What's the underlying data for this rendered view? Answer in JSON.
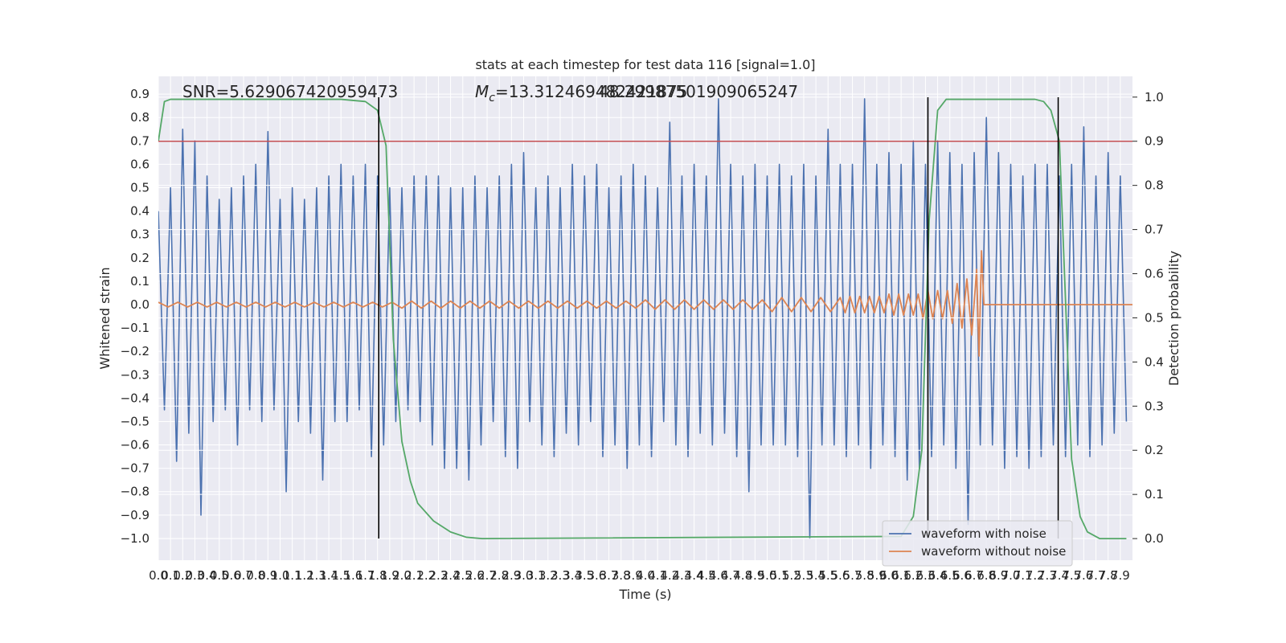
{
  "chart_data": {
    "type": "line",
    "title": "stats at each timestep for test data 116 [signal=1.0]",
    "x_label": "Time (s)",
    "y_label": "Whitened strain",
    "y2_label": "Detection probability",
    "grid": true,
    "legend": "lower right",
    "xlim": [
      0,
      8.0
    ],
    "ylim": [
      -1.093,
      0.976
    ],
    "y2lim": [
      -0.049,
      1.047
    ],
    "xticks": [
      {
        "value": 0,
        "label": "0.0"
      },
      0.1,
      0.2,
      0.3,
      0.4,
      0.5,
      0.6,
      0.7,
      0.8,
      0.9,
      {
        "value": 1,
        "label": "1.0"
      },
      1.1,
      1.2,
      1.3,
      1.4,
      1.5,
      1.6,
      1.7,
      1.8,
      1.9,
      {
        "value": 2,
        "label": "2.0"
      },
      2.1,
      2.2,
      2.3,
      2.4,
      2.5,
      2.6,
      2.7,
      2.8,
      2.9,
      {
        "value": 3,
        "label": "3.0"
      },
      3.1,
      3.2,
      3.3,
      3.4,
      3.5,
      3.6,
      3.7,
      3.8,
      3.9,
      {
        "value": 4,
        "label": "4.0"
      },
      4.1,
      4.2,
      4.3,
      4.4,
      4.5,
      4.6,
      4.7,
      4.8,
      4.9,
      {
        "value": 5,
        "label": "5.0"
      },
      5.1,
      5.2,
      5.3,
      5.4,
      5.5,
      5.6,
      5.7,
      5.8,
      5.9,
      {
        "value": 6,
        "label": "6.0"
      },
      6.1,
      6.2,
      6.3,
      6.4,
      6.5,
      6.6,
      6.7,
      6.8,
      6.9,
      {
        "value": 7,
        "label": "7.0"
      },
      7.1,
      7.2,
      7.3,
      7.4,
      7.5,
      7.6,
      7.7,
      7.8,
      7.9
    ],
    "yticks": [
      {
        "value": -1,
        "label": "−1.0"
      },
      {
        "value": -0.9,
        "label": "−0.9"
      },
      {
        "value": -0.8,
        "label": "−0.8"
      },
      {
        "value": -0.7,
        "label": "−0.7"
      },
      {
        "value": -0.6,
        "label": "−0.6"
      },
      {
        "value": -0.5,
        "label": "−0.5"
      },
      {
        "value": -0.4,
        "label": "−0.4"
      },
      {
        "value": -0.3,
        "label": "−0.3"
      },
      {
        "value": -0.2,
        "label": "−0.2"
      },
      {
        "value": -0.1,
        "label": "−0.1"
      },
      {
        "value": 0,
        "label": "0.0"
      },
      0.1,
      0.2,
      0.3,
      0.4,
      0.5,
      0.6,
      0.7,
      0.8,
      0.9
    ],
    "y2ticks": [
      {
        "value": 0,
        "label": "0.0"
      },
      0.1,
      0.2,
      0.3,
      0.4,
      0.5,
      0.6,
      0.7,
      0.8,
      0.9,
      {
        "value": 1,
        "label": "1.0"
      }
    ],
    "annotations": [
      {
        "text": "SNR=5.629067420959473"
      },
      {
        "symbol": "M",
        "subscript": "c",
        "text": "=13.312469482421875"
      },
      {
        "text": "48.29987501909065247"
      }
    ],
    "series": [
      {
        "name": "waveform with noise",
        "color": "#4c72b0",
        "x": [
          0,
          0.05,
          0.1,
          0.15,
          0.2,
          0.25,
          0.3,
          0.35,
          0.4,
          0.45,
          0.5,
          0.55,
          0.6,
          0.65,
          0.7,
          0.75,
          0.8,
          0.85,
          0.9,
          0.95,
          1,
          1.05,
          1.1,
          1.15,
          1.2,
          1.25,
          1.3,
          1.35,
          1.4,
          1.45,
          1.5,
          1.55,
          1.6,
          1.65,
          1.7,
          1.75,
          1.8,
          1.85,
          1.9,
          1.95,
          2,
          2.05,
          2.1,
          2.15,
          2.2,
          2.25,
          2.3,
          2.35,
          2.4,
          2.45,
          2.5,
          2.55,
          2.6,
          2.65,
          2.7,
          2.75,
          2.8,
          2.85,
          2.9,
          2.95,
          3,
          3.05,
          3.1,
          3.15,
          3.2,
          3.25,
          3.3,
          3.35,
          3.4,
          3.45,
          3.5,
          3.55,
          3.6,
          3.65,
          3.7,
          3.75,
          3.8,
          3.85,
          3.9,
          3.95,
          4,
          4.05,
          4.1,
          4.15,
          4.2,
          4.25,
          4.3,
          4.35,
          4.4,
          4.45,
          4.5,
          4.55,
          4.6,
          4.65,
          4.7,
          4.75,
          4.8,
          4.85,
          4.9,
          4.95,
          5,
          5.05,
          5.1,
          5.15,
          5.2,
          5.25,
          5.3,
          5.35,
          5.4,
          5.45,
          5.5,
          5.55,
          5.6,
          5.65,
          5.7,
          5.75,
          5.8,
          5.85,
          5.9,
          5.95,
          6,
          6.05,
          6.1,
          6.15,
          6.2,
          6.25,
          6.3,
          6.35,
          6.4,
          6.45,
          6.5,
          6.55,
          6.6,
          6.65,
          6.7,
          6.75,
          6.8,
          6.85,
          6.9,
          6.95,
          7,
          7.05,
          7.1,
          7.15,
          7.2,
          7.25,
          7.3,
          7.35,
          7.4,
          7.45,
          7.5,
          7.55,
          7.6,
          7.65,
          7.7,
          7.75,
          7.8,
          7.85,
          7.9,
          7.95
        ],
        "values": [
          0.4,
          -0.45,
          0.5,
          -0.67,
          0.75,
          -0.55,
          0.7,
          -0.9,
          0.55,
          -0.5,
          0.45,
          -0.45,
          0.5,
          -0.6,
          0.55,
          -0.45,
          0.6,
          -0.5,
          0.74,
          -0.45,
          0.45,
          -0.8,
          0.5,
          -0.5,
          0.45,
          -0.55,
          0.5,
          -0.75,
          0.55,
          -0.5,
          0.6,
          -0.5,
          0.55,
          -0.45,
          0.6,
          -0.65,
          0.55,
          -0.6,
          0.5,
          -0.5,
          0.5,
          -0.45,
          0.55,
          -0.5,
          0.55,
          -0.6,
          0.55,
          -0.7,
          0.5,
          -0.7,
          0.5,
          -0.75,
          0.55,
          -0.6,
          0.5,
          -0.5,
          0.55,
          -0.65,
          0.6,
          -0.7,
          0.65,
          -0.5,
          0.5,
          -0.6,
          0.55,
          -0.65,
          0.5,
          -0.55,
          0.6,
          -0.6,
          0.55,
          -0.5,
          0.6,
          -0.65,
          0.5,
          -0.6,
          0.55,
          -0.7,
          0.6,
          -0.6,
          0.55,
          -0.65,
          0.5,
          -0.5,
          0.78,
          -0.6,
          0.55,
          -0.65,
          0.6,
          -0.55,
          0.55,
          -0.6,
          0.88,
          -0.55,
          0.6,
          -0.65,
          0.55,
          -0.8,
          0.6,
          -0.6,
          0.55,
          -0.6,
          0.6,
          -0.6,
          0.55,
          -0.65,
          0.6,
          -1.0,
          0.55,
          -0.6,
          0.75,
          -0.6,
          0.6,
          -0.65,
          0.6,
          -0.6,
          0.88,
          -0.7,
          0.6,
          -0.6,
          0.65,
          -0.65,
          0.6,
          -0.75,
          0.7,
          -0.7,
          0.6,
          -0.65,
          0.7,
          -0.6,
          0.65,
          -0.7,
          0.6,
          -0.94,
          0.65,
          -0.6,
          0.8,
          -0.6,
          0.65,
          -0.7,
          0.6,
          -0.65,
          0.55,
          -0.7,
          0.6,
          -0.65,
          0.6,
          -0.6,
          0.55,
          -0.65,
          0.6,
          -0.6,
          0.76,
          -0.65,
          0.55,
          -0.6,
          0.65,
          -0.55,
          0.55,
          -0.5
        ]
      },
      {
        "name": "waveform without noise",
        "color": "#dd8452",
        "x": [
          0,
          0.08,
          0.16,
          0.24,
          0.32,
          0.4,
          0.48,
          0.56,
          0.64,
          0.72,
          0.8,
          0.88,
          0.96,
          1.04,
          1.12,
          1.2,
          1.28,
          1.36,
          1.44,
          1.52,
          1.6,
          1.68,
          1.76,
          1.84,
          1.92,
          2.0,
          2.08,
          2.16,
          2.24,
          2.32,
          2.4,
          2.48,
          2.56,
          2.64,
          2.72,
          2.8,
          2.88,
          2.96,
          3.04,
          3.12,
          3.2,
          3.28,
          3.36,
          3.44,
          3.52,
          3.6,
          3.68,
          3.76,
          3.84,
          3.92,
          4.0,
          4.08,
          4.16,
          4.24,
          4.32,
          4.4,
          4.48,
          4.56,
          4.64,
          4.72,
          4.8,
          4.88,
          4.96,
          5.04,
          5.12,
          5.2,
          5.28,
          5.36,
          5.44,
          5.52,
          5.6,
          5.64,
          5.68,
          5.72,
          5.76,
          5.8,
          5.84,
          5.88,
          5.92,
          5.96,
          6.0,
          6.04,
          6.08,
          6.12,
          6.16,
          6.2,
          6.24,
          6.28,
          6.32,
          6.36,
          6.4,
          6.44,
          6.48,
          6.52,
          6.56,
          6.6,
          6.64,
          6.68,
          6.72,
          6.74,
          6.76,
          6.78,
          8.0
        ],
        "values": [
          0.01,
          -0.01,
          0.01,
          -0.01,
          0.01,
          -0.01,
          0.01,
          -0.01,
          0.01,
          -0.01,
          0.01,
          -0.01,
          0.01,
          -0.01,
          0.01,
          -0.01,
          0.01,
          -0.01,
          0.01,
          -0.01,
          0.01,
          -0.01,
          0.01,
          -0.01,
          0.01,
          -0.015,
          0.015,
          -0.015,
          0.015,
          -0.015,
          0.015,
          -0.015,
          0.015,
          -0.015,
          0.015,
          -0.015,
          0.015,
          -0.015,
          0.015,
          -0.015,
          0.015,
          -0.015,
          0.015,
          -0.015,
          0.015,
          -0.015,
          0.015,
          -0.015,
          0.015,
          -0.015,
          0.02,
          -0.02,
          0.02,
          -0.02,
          0.02,
          -0.02,
          0.02,
          -0.02,
          0.02,
          -0.02,
          0.02,
          -0.02,
          0.02,
          -0.03,
          0.03,
          -0.03,
          0.03,
          -0.03,
          0.03,
          -0.03,
          0.03,
          -0.035,
          0.035,
          -0.035,
          0.035,
          -0.035,
          0.035,
          -0.035,
          0.035,
          -0.035,
          0.045,
          -0.045,
          0.045,
          -0.045,
          0.045,
          -0.045,
          0.045,
          -0.06,
          0.06,
          -0.06,
          0.06,
          -0.06,
          0.06,
          -0.08,
          0.09,
          -0.1,
          0.11,
          -0.13,
          0.15,
          -0.22,
          0.23,
          0,
          0
        ]
      },
      {
        "color": "#55a868",
        "axis": "y2",
        "x": [
          0,
          0.05,
          0.1,
          1.5,
          1.7,
          1.8,
          1.87,
          1.93,
          2.0,
          2.07,
          2.13,
          2.26,
          2.4,
          2.53,
          2.66,
          6.1,
          6.2,
          6.27,
          6.33,
          6.4,
          6.47,
          7.2,
          7.27,
          7.33,
          7.4,
          7.5,
          7.57,
          7.63,
          7.73,
          7.95
        ],
        "values": [
          0.9,
          0.99,
          0.995,
          0.995,
          0.99,
          0.97,
          0.89,
          0.45,
          0.22,
          0.13,
          0.08,
          0.04,
          0.015,
          0.003,
          0.0,
          0.005,
          0.05,
          0.2,
          0.72,
          0.97,
          0.995,
          0.995,
          0.99,
          0.97,
          0.9,
          0.18,
          0.05,
          0.015,
          0.0,
          0.0
        ]
      }
    ],
    "hlines": [
      {
        "value": 0.9,
        "axis": "y2",
        "color": "#c44e52"
      }
    ],
    "vlines": [
      1.81,
      6.32,
      7.39
    ],
    "vline_color": "#000000"
  }
}
